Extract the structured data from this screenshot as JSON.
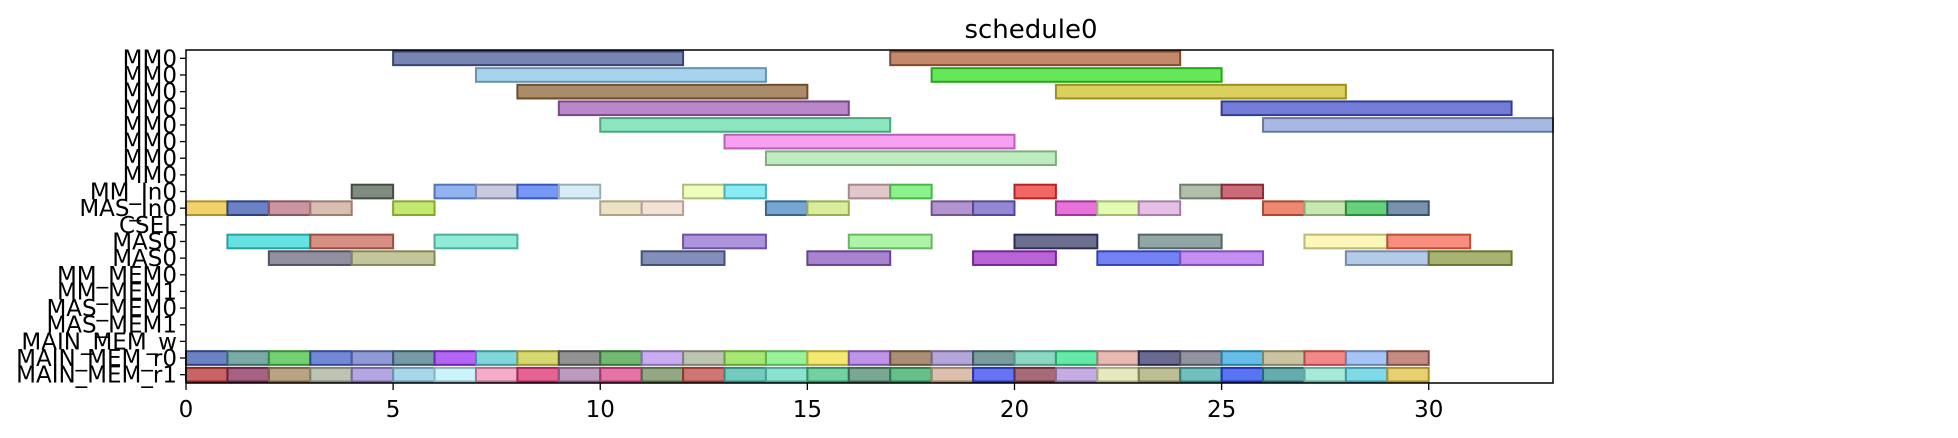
{
  "chart_data": {
    "type": "gantt",
    "title": "schedule0",
    "xlim": [
      0,
      33
    ],
    "x_ticks": [
      0,
      5,
      10,
      15,
      20,
      25,
      30
    ],
    "x_tick_labels": [
      "0",
      "5",
      "10",
      "15",
      "20",
      "25",
      "30"
    ],
    "grid": false,
    "rows": [
      "MM0",
      "MM0",
      "MM0",
      "MM0",
      "MM0",
      "MM0",
      "MM0",
      "MM0",
      "MM_In0",
      "MAS_In0",
      "CSEL",
      "MAS0",
      "MAS0",
      "MM_MEM0",
      "MM_MEM1",
      "MAS_MEM0",
      "MAS_MEM1",
      "MAIN_MEM_w",
      "MAIN_MEM_r0",
      "MAIN_MEM_r1"
    ],
    "bars": [
      {
        "row": 0,
        "start": 5,
        "end": 12,
        "color": "#4a5c9a"
      },
      {
        "row": 0,
        "start": 17,
        "end": 24,
        "color": "#b0603a"
      },
      {
        "row": 1,
        "start": 7,
        "end": 14,
        "color": "#8ac4ea"
      },
      {
        "row": 1,
        "start": 18,
        "end": 25,
        "color": "#33dd22"
      },
      {
        "row": 2,
        "start": 8,
        "end": 15,
        "color": "#8e6638"
      },
      {
        "row": 2,
        "start": 21,
        "end": 28,
        "color": "#cfc028"
      },
      {
        "row": 3,
        "start": 9,
        "end": 16,
        "color": "#a060b8"
      },
      {
        "row": 3,
        "start": 25,
        "end": 32,
        "color": "#4450c8"
      },
      {
        "row": 4,
        "start": 10,
        "end": 17,
        "color": "#66ddaa"
      },
      {
        "row": 4,
        "start": 26,
        "end": 33,
        "color": "#8aa0d8"
      },
      {
        "row": 5,
        "start": 13,
        "end": 20,
        "color": "#f580ee"
      },
      {
        "row": 6,
        "start": 14,
        "end": 21,
        "color": "#a8e6a8"
      },
      {
        "row": 8,
        "start": 4,
        "end": 5,
        "color": "#556655"
      },
      {
        "row": 8,
        "start": 6,
        "end": 7,
        "color": "#6e9aee"
      },
      {
        "row": 8,
        "start": 7,
        "end": 8,
        "color": "#b6b8d8"
      },
      {
        "row": 8,
        "start": 8,
        "end": 9,
        "color": "#4a76f2"
      },
      {
        "row": 8,
        "start": 9,
        "end": 10,
        "color": "#cae6f2"
      },
      {
        "row": 8,
        "start": 12,
        "end": 13,
        "color": "#eafca8"
      },
      {
        "row": 8,
        "start": 13,
        "end": 14,
        "color": "#66e6f2"
      },
      {
        "row": 8,
        "start": 16,
        "end": 17,
        "color": "#d8b6b8"
      },
      {
        "row": 8,
        "start": 17,
        "end": 18,
        "color": "#66ee66"
      },
      {
        "row": 8,
        "start": 20,
        "end": 21,
        "color": "#ee3333"
      },
      {
        "row": 8,
        "start": 24,
        "end": 25,
        "color": "#98a890"
      },
      {
        "row": 8,
        "start": 25,
        "end": 26,
        "color": "#b83a4a"
      },
      {
        "row": 9,
        "start": 0,
        "end": 1,
        "color": "#eec038"
      },
      {
        "row": 9,
        "start": 1,
        "end": 2,
        "color": "#3a58b0"
      },
      {
        "row": 9,
        "start": 2,
        "end": 3,
        "color": "#b87080"
      },
      {
        "row": 9,
        "start": 3,
        "end": 4,
        "color": "#cfa898"
      },
      {
        "row": 9,
        "start": 5,
        "end": 6,
        "color": "#b0e040"
      },
      {
        "row": 9,
        "start": 10,
        "end": 11,
        "color": "#e6dab0"
      },
      {
        "row": 9,
        "start": 11,
        "end": 12,
        "color": "#eed8c8"
      },
      {
        "row": 9,
        "start": 14,
        "end": 15,
        "color": "#4a88c0"
      },
      {
        "row": 9,
        "start": 15,
        "end": 16,
        "color": "#cce878"
      },
      {
        "row": 9,
        "start": 18,
        "end": 19,
        "color": "#9a70c0"
      },
      {
        "row": 9,
        "start": 19,
        "end": 20,
        "color": "#7060c8"
      },
      {
        "row": 9,
        "start": 21,
        "end": 22,
        "color": "#dd44cc"
      },
      {
        "row": 9,
        "start": 22,
        "end": 23,
        "color": "#d8fc98"
      },
      {
        "row": 9,
        "start": 23,
        "end": 24,
        "color": "#dcaadc"
      },
      {
        "row": 9,
        "start": 26,
        "end": 27,
        "color": "#e86040"
      },
      {
        "row": 9,
        "start": 27,
        "end": 28,
        "color": "#b6e098"
      },
      {
        "row": 9,
        "start": 28,
        "end": 29,
        "color": "#33c050"
      },
      {
        "row": 9,
        "start": 29,
        "end": 30,
        "color": "#4a6e8e"
      },
      {
        "row": 11,
        "start": 1,
        "end": 3,
        "color": "#33d8d8"
      },
      {
        "row": 11,
        "start": 3,
        "end": 5,
        "color": "#c86a58"
      },
      {
        "row": 11,
        "start": 6,
        "end": 8,
        "color": "#6ae6cc"
      },
      {
        "row": 11,
        "start": 12,
        "end": 14,
        "color": "#9270d0"
      },
      {
        "row": 11,
        "start": 16,
        "end": 18,
        "color": "#90f088"
      },
      {
        "row": 11,
        "start": 20,
        "end": 22,
        "color": "#3a3e6a"
      },
      {
        "row": 11,
        "start": 23,
        "end": 25,
        "color": "#6e8888"
      },
      {
        "row": 11,
        "start": 27,
        "end": 29,
        "color": "#fcf4a0"
      },
      {
        "row": 11,
        "start": 29,
        "end": 31,
        "color": "#f86850"
      },
      {
        "row": 12,
        "start": 2,
        "end": 4,
        "color": "#6e6a80"
      },
      {
        "row": 12,
        "start": 4,
        "end": 6,
        "color": "#b0b478"
      },
      {
        "row": 12,
        "start": 11,
        "end": 13,
        "color": "#5a6aa0"
      },
      {
        "row": 12,
        "start": 15,
        "end": 17,
        "color": "#8a5ac0"
      },
      {
        "row": 12,
        "start": 19,
        "end": 21,
        "color": "#a030c8"
      },
      {
        "row": 12,
        "start": 22,
        "end": 24,
        "color": "#4458ee"
      },
      {
        "row": 12,
        "start": 24,
        "end": 26,
        "color": "#b068ee"
      },
      {
        "row": 12,
        "start": 28,
        "end": 30,
        "color": "#9ab8e0"
      },
      {
        "row": 12,
        "start": 30,
        "end": 32,
        "color": "#8a9a40"
      },
      {
        "row": 18,
        "start": 0,
        "end": 1,
        "color": "#3a5ab0"
      },
      {
        "row": 18,
        "start": 1,
        "end": 2,
        "color": "#4e8e88"
      },
      {
        "row": 18,
        "start": 2,
        "end": 3,
        "color": "#44c044"
      },
      {
        "row": 18,
        "start": 3,
        "end": 4,
        "color": "#4460c8"
      },
      {
        "row": 18,
        "start": 4,
        "end": 5,
        "color": "#6a78c8"
      },
      {
        "row": 18,
        "start": 5,
        "end": 6,
        "color": "#4a7a88"
      },
      {
        "row": 18,
        "start": 6,
        "end": 7,
        "color": "#9a33ee"
      },
      {
        "row": 18,
        "start": 7,
        "end": 8,
        "color": "#55c8cc"
      },
      {
        "row": 18,
        "start": 8,
        "end": 9,
        "color": "#c8cc40"
      },
      {
        "row": 18,
        "start": 9,
        "end": 10,
        "color": "#6e6e6e"
      },
      {
        "row": 18,
        "start": 10,
        "end": 11,
        "color": "#44a044"
      },
      {
        "row": 18,
        "start": 11,
        "end": 12,
        "color": "#b890ee"
      },
      {
        "row": 18,
        "start": 12,
        "end": 13,
        "color": "#a8b098"
      },
      {
        "row": 18,
        "start": 13,
        "end": 14,
        "color": "#88dd44"
      },
      {
        "row": 18,
        "start": 14,
        "end": 15,
        "color": "#77ee77"
      },
      {
        "row": 18,
        "start": 15,
        "end": 16,
        "color": "#f0e040"
      },
      {
        "row": 18,
        "start": 16,
        "end": 17,
        "color": "#a870e0"
      },
      {
        "row": 18,
        "start": 17,
        "end": 18,
        "color": "#8e6a48"
      },
      {
        "row": 18,
        "start": 18,
        "end": 19,
        "color": "#9a88cc"
      },
      {
        "row": 18,
        "start": 19,
        "end": 20,
        "color": "#4e7a7a"
      },
      {
        "row": 18,
        "start": 20,
        "end": 21,
        "color": "#66c8b0"
      },
      {
        "row": 18,
        "start": 21,
        "end": 22,
        "color": "#33e088"
      },
      {
        "row": 18,
        "start": 22,
        "end": 23,
        "color": "#e0a098"
      },
      {
        "row": 18,
        "start": 23,
        "end": 24,
        "color": "#3a3a6a"
      },
      {
        "row": 18,
        "start": 24,
        "end": 25,
        "color": "#6e7080"
      },
      {
        "row": 18,
        "start": 25,
        "end": 26,
        "color": "#33a8e0"
      },
      {
        "row": 18,
        "start": 26,
        "end": 27,
        "color": "#b8b080"
      },
      {
        "row": 18,
        "start": 27,
        "end": 28,
        "color": "#ee6060"
      },
      {
        "row": 18,
        "start": 28,
        "end": 29,
        "color": "#88b0f0"
      },
      {
        "row": 18,
        "start": 29,
        "end": 30,
        "color": "#b0665a"
      },
      {
        "row": 19,
        "start": 0,
        "end": 1,
        "color": "#b83030"
      },
      {
        "row": 19,
        "start": 1,
        "end": 2,
        "color": "#882e58"
      },
      {
        "row": 19,
        "start": 2,
        "end": 3,
        "color": "#a0845a"
      },
      {
        "row": 19,
        "start": 3,
        "end": 4,
        "color": "#a8b098"
      },
      {
        "row": 19,
        "start": 4,
        "end": 5,
        "color": "#9a88d8"
      },
      {
        "row": 19,
        "start": 5,
        "end": 6,
        "color": "#88c8e0"
      },
      {
        "row": 19,
        "start": 6,
        "end": 7,
        "color": "#b8f0f8"
      },
      {
        "row": 19,
        "start": 7,
        "end": 8,
        "color": "#f090b8"
      },
      {
        "row": 19,
        "start": 8,
        "end": 9,
        "color": "#dd3070"
      },
      {
        "row": 19,
        "start": 9,
        "end": 10,
        "color": "#a878a8"
      },
      {
        "row": 19,
        "start": 10,
        "end": 11,
        "color": "#dd4488"
      },
      {
        "row": 19,
        "start": 11,
        "end": 12,
        "color": "#6e8a58"
      },
      {
        "row": 19,
        "start": 12,
        "end": 13,
        "color": "#c04a44"
      },
      {
        "row": 19,
        "start": 13,
        "end": 14,
        "color": "#44b8a8"
      },
      {
        "row": 19,
        "start": 14,
        "end": 15,
        "color": "#66d8c0"
      },
      {
        "row": 19,
        "start": 15,
        "end": 16,
        "color": "#44c080"
      },
      {
        "row": 19,
        "start": 16,
        "end": 17,
        "color": "#4e8a70"
      },
      {
        "row": 19,
        "start": 17,
        "end": 18,
        "color": "#33a860"
      },
      {
        "row": 19,
        "start": 18,
        "end": 19,
        "color": "#d0aa90"
      },
      {
        "row": 19,
        "start": 19,
        "end": 20,
        "color": "#3344ee"
      },
      {
        "row": 19,
        "start": 20,
        "end": 21,
        "color": "#883a4a"
      },
      {
        "row": 19,
        "start": 21,
        "end": 22,
        "color": "#b090d8"
      },
      {
        "row": 19,
        "start": 22,
        "end": 23,
        "color": "#e0e0a8"
      },
      {
        "row": 19,
        "start": 23,
        "end": 24,
        "color": "#a8a870"
      },
      {
        "row": 19,
        "start": 24,
        "end": 25,
        "color": "#44a8a8"
      },
      {
        "row": 19,
        "start": 25,
        "end": 26,
        "color": "#2244ee"
      },
      {
        "row": 19,
        "start": 26,
        "end": 27,
        "color": "#339090"
      },
      {
        "row": 19,
        "start": 27,
        "end": 28,
        "color": "#88e0cc"
      },
      {
        "row": 19,
        "start": 28,
        "end": 29,
        "color": "#55ccdd"
      },
      {
        "row": 19,
        "start": 29,
        "end": 30,
        "color": "#e0c040"
      }
    ]
  }
}
